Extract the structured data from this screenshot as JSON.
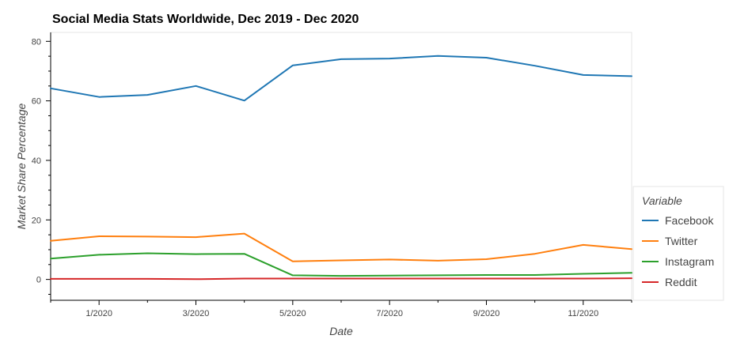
{
  "chart_data": {
    "type": "line",
    "title": "Social Media Stats Worldwide, Dec 2019 - Dec 2020",
    "xlabel": "Date",
    "ylabel": "Market Share Percentage",
    "x": [
      "2019-12",
      "2020-01",
      "2020-02",
      "2020-03",
      "2020-04",
      "2020-05",
      "2020-06",
      "2020-07",
      "2020-08",
      "2020-09",
      "2020-10",
      "2020-11",
      "2020-12"
    ],
    "x_ticks": [
      "1/2020",
      "3/2020",
      "5/2020",
      "7/2020",
      "9/2020",
      "11/2020"
    ],
    "y_ticks": [
      0,
      20,
      40,
      60,
      80
    ],
    "ylim": [
      -7,
      83
    ],
    "grid": false,
    "legend": {
      "title": "Variable",
      "placement": "right"
    },
    "series": [
      {
        "name": "Facebook",
        "color": "#1f77b4",
        "values": [
          64.2,
          61.3,
          62.0,
          65.0,
          60.1,
          71.9,
          74.0,
          74.2,
          75.1,
          74.5,
          71.8,
          68.7,
          68.3
        ]
      },
      {
        "name": "Twitter",
        "color": "#ff7f0e",
        "values": [
          13.0,
          14.5,
          14.4,
          14.2,
          15.4,
          6.1,
          6.4,
          6.7,
          6.3,
          6.8,
          8.6,
          11.6,
          10.2
        ]
      },
      {
        "name": "Instagram",
        "color": "#2ca02c",
        "values": [
          7.0,
          8.3,
          8.8,
          8.5,
          8.6,
          1.4,
          1.2,
          1.3,
          1.4,
          1.5,
          1.5,
          1.9,
          2.2
        ]
      },
      {
        "name": "Reddit",
        "color": "#d62728",
        "values": [
          0.2,
          0.2,
          0.2,
          0.1,
          0.3,
          0.3,
          0.3,
          0.3,
          0.3,
          0.3,
          0.3,
          0.3,
          0.4
        ]
      }
    ]
  }
}
